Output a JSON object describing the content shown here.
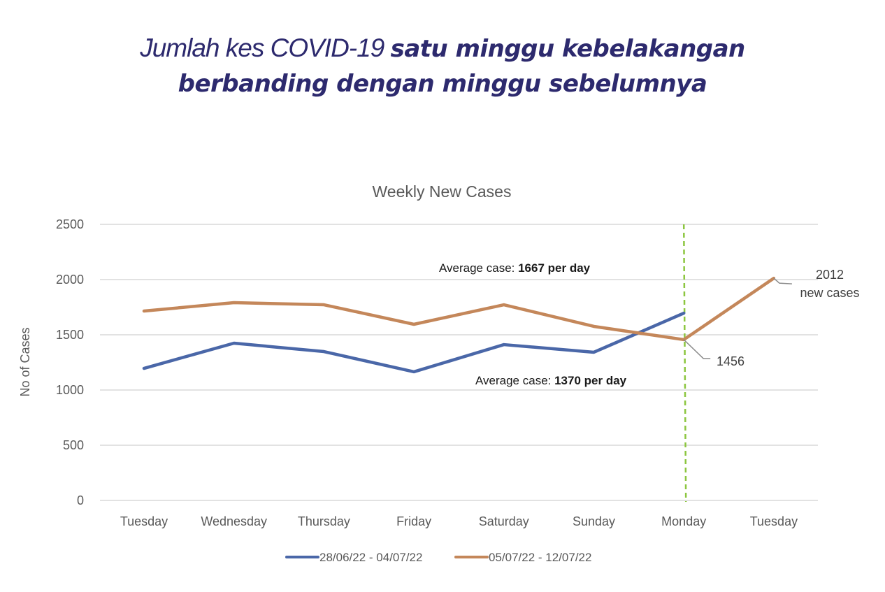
{
  "headline": {
    "part_light": "Jumlah kes COVID-19 ",
    "part_bold_1": "satu minggu kebelakangan",
    "part_bold_2": "berbanding dengan minggu sebelumnya",
    "color": "#2d2a6e"
  },
  "chart_data": {
    "type": "line",
    "title": "Weekly New Cases",
    "xlabel": "",
    "ylabel": "No of Cases",
    "ylim": [
      0,
      2500
    ],
    "yticks": [
      0,
      500,
      1000,
      1500,
      2000,
      2500
    ],
    "ytick_labels": [
      "0",
      "500",
      "1000",
      "1500",
      "2000",
      "2500"
    ],
    "grid": true,
    "categories": [
      "Tuesday",
      "Wednesday",
      "Thursday",
      "Friday",
      "Saturday",
      "Sunday",
      "Monday",
      "Tuesday"
    ],
    "series": [
      {
        "name": "28/06/22 - 04/07/22",
        "color": "#4a67a8",
        "values": [
          1196,
          1424,
          1348,
          1165,
          1411,
          1342,
          1696,
          null
        ]
      },
      {
        "name": "05/07/22 - 12/07/22",
        "color": "#c4875a",
        "values": [
          1715,
          1791,
          1772,
          1595,
          1772,
          1576,
          1456,
          2012
        ]
      }
    ],
    "reference_line": {
      "category_index": 6,
      "color": "#8cc63f",
      "style": "dashed"
    },
    "annotations": {
      "avg_orange": {
        "prefix": "Average case: ",
        "bold": "1667 per day"
      },
      "avg_blue": {
        "prefix": "Average case: ",
        "bold": "1370 per day"
      },
      "callout_1456": "1456",
      "callout_2012_line1": "2012",
      "callout_2012_line2": "new cases"
    },
    "legend_position": "bottom"
  }
}
